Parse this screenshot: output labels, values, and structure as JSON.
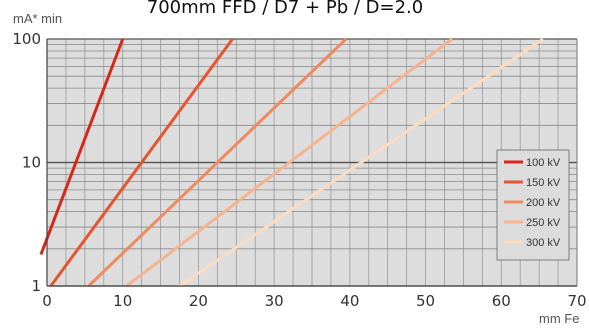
{
  "chart_data": {
    "type": "line",
    "title": "700mm FFD / D7 + Pb / D=2.0",
    "xlabel": "mm Fe",
    "ylabel": "mA* min",
    "xlim": [
      0,
      70
    ],
    "ylim": [
      1,
      100
    ],
    "yscale": "log",
    "x_ticks": [
      0,
      10,
      20,
      30,
      40,
      50,
      60,
      70
    ],
    "x_tick_labels": [
      "0",
      "10",
      "20",
      "30",
      "40",
      "50",
      "60",
      "70"
    ],
    "y_ticks": [
      1,
      10,
      100
    ],
    "y_tick_labels": [
      "1",
      "10",
      "100"
    ],
    "grid": true,
    "legend_position": "right",
    "series": [
      {
        "name": "100 kV",
        "color": "#d7261b",
        "x": [
          -0.8,
          10
        ],
        "y": [
          1.8,
          100
        ]
      },
      {
        "name": "150 kV",
        "color": "#e5552f",
        "x": [
          0.5,
          24.5
        ],
        "y": [
          1,
          100
        ]
      },
      {
        "name": "200 kV",
        "color": "#ef8a5f",
        "x": [
          5.5,
          39.5
        ],
        "y": [
          1,
          100
        ]
      },
      {
        "name": "250 kV",
        "color": "#f6b38f",
        "x": [
          10.5,
          53.5
        ],
        "y": [
          1,
          100
        ]
      },
      {
        "name": "300 kV",
        "color": "#fbdcc3",
        "x": [
          17.5,
          65.5
        ],
        "y": [
          1,
          100
        ]
      }
    ]
  }
}
